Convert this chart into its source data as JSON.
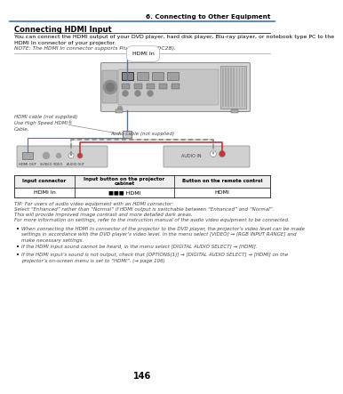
{
  "page_number": "146",
  "chapter_header": "6. Connecting to Other Equipment",
  "section_title": "Connecting HDMI Input",
  "body_text_1": "You can connect the HDMI output of your DVD player, hard disk player, Blu-ray player, or notebook type PC to the\nHDMI In connector of your projector.",
  "note_text": "NOTE: The HDMI In connector supports Plug & Play (DDC2B).",
  "cable_label_1": "HDMI cable (not supplied)\nUse High Speed HDMI®\nCable.",
  "audio_cable_label": "Audio cable (not supplied)",
  "hdmi_in_label": "HDMI In",
  "table_headers": [
    "Input connector",
    "Input button on the projector\ncabinet",
    "Button on the remote control"
  ],
  "table_row": [
    "HDMI In",
    "■■■ HDMI",
    "HDMI"
  ],
  "tip_line0": "TIP: For users of audio video equipment with an HDMI connector:",
  "tip_line1": "Select “Enhanced” rather than “Normal” if HDMI output is switchable between “Enhanced” and “Normal”.",
  "tip_line2": "This will provide improved image contrast and more detailed dark areas.",
  "tip_line3": "For more information on settings, refer to the instruction manual of the audio video equipment to be connected.",
  "bullet_1": "When connecting the HDMI In connector of the projector to the DVD player, the projector’s video level can be made\nsettings in accordance with the DVD player’s video level. In the menu select [VIDEO] → [RGB INPUT RANGE] and\nmake necessary settings.",
  "bullet_2": "If the HDMI input sound cannot be heard, in the menu select [DIGITAL AUDIO SELECT] → [HDMI].",
  "bullet_3": "If the HDMI input’s sound is not output, check that [OPTIONS(1)] → [DIGITAL AUDIO SELECT] → [HDMI] on the\nprojector’s on-screen menu is set to “HDMI”. (→ page 106)",
  "bg_color": "#ffffff",
  "header_line_color": "#4472c4",
  "blue_cable_color": "#4472c4",
  "gray_proj": "#c8c8c8",
  "gray_dark": "#a0a0a0",
  "gray_light": "#e0e0e0",
  "text_color": "#000000",
  "italic_color": "#444444",
  "link_color": "#4472c4"
}
